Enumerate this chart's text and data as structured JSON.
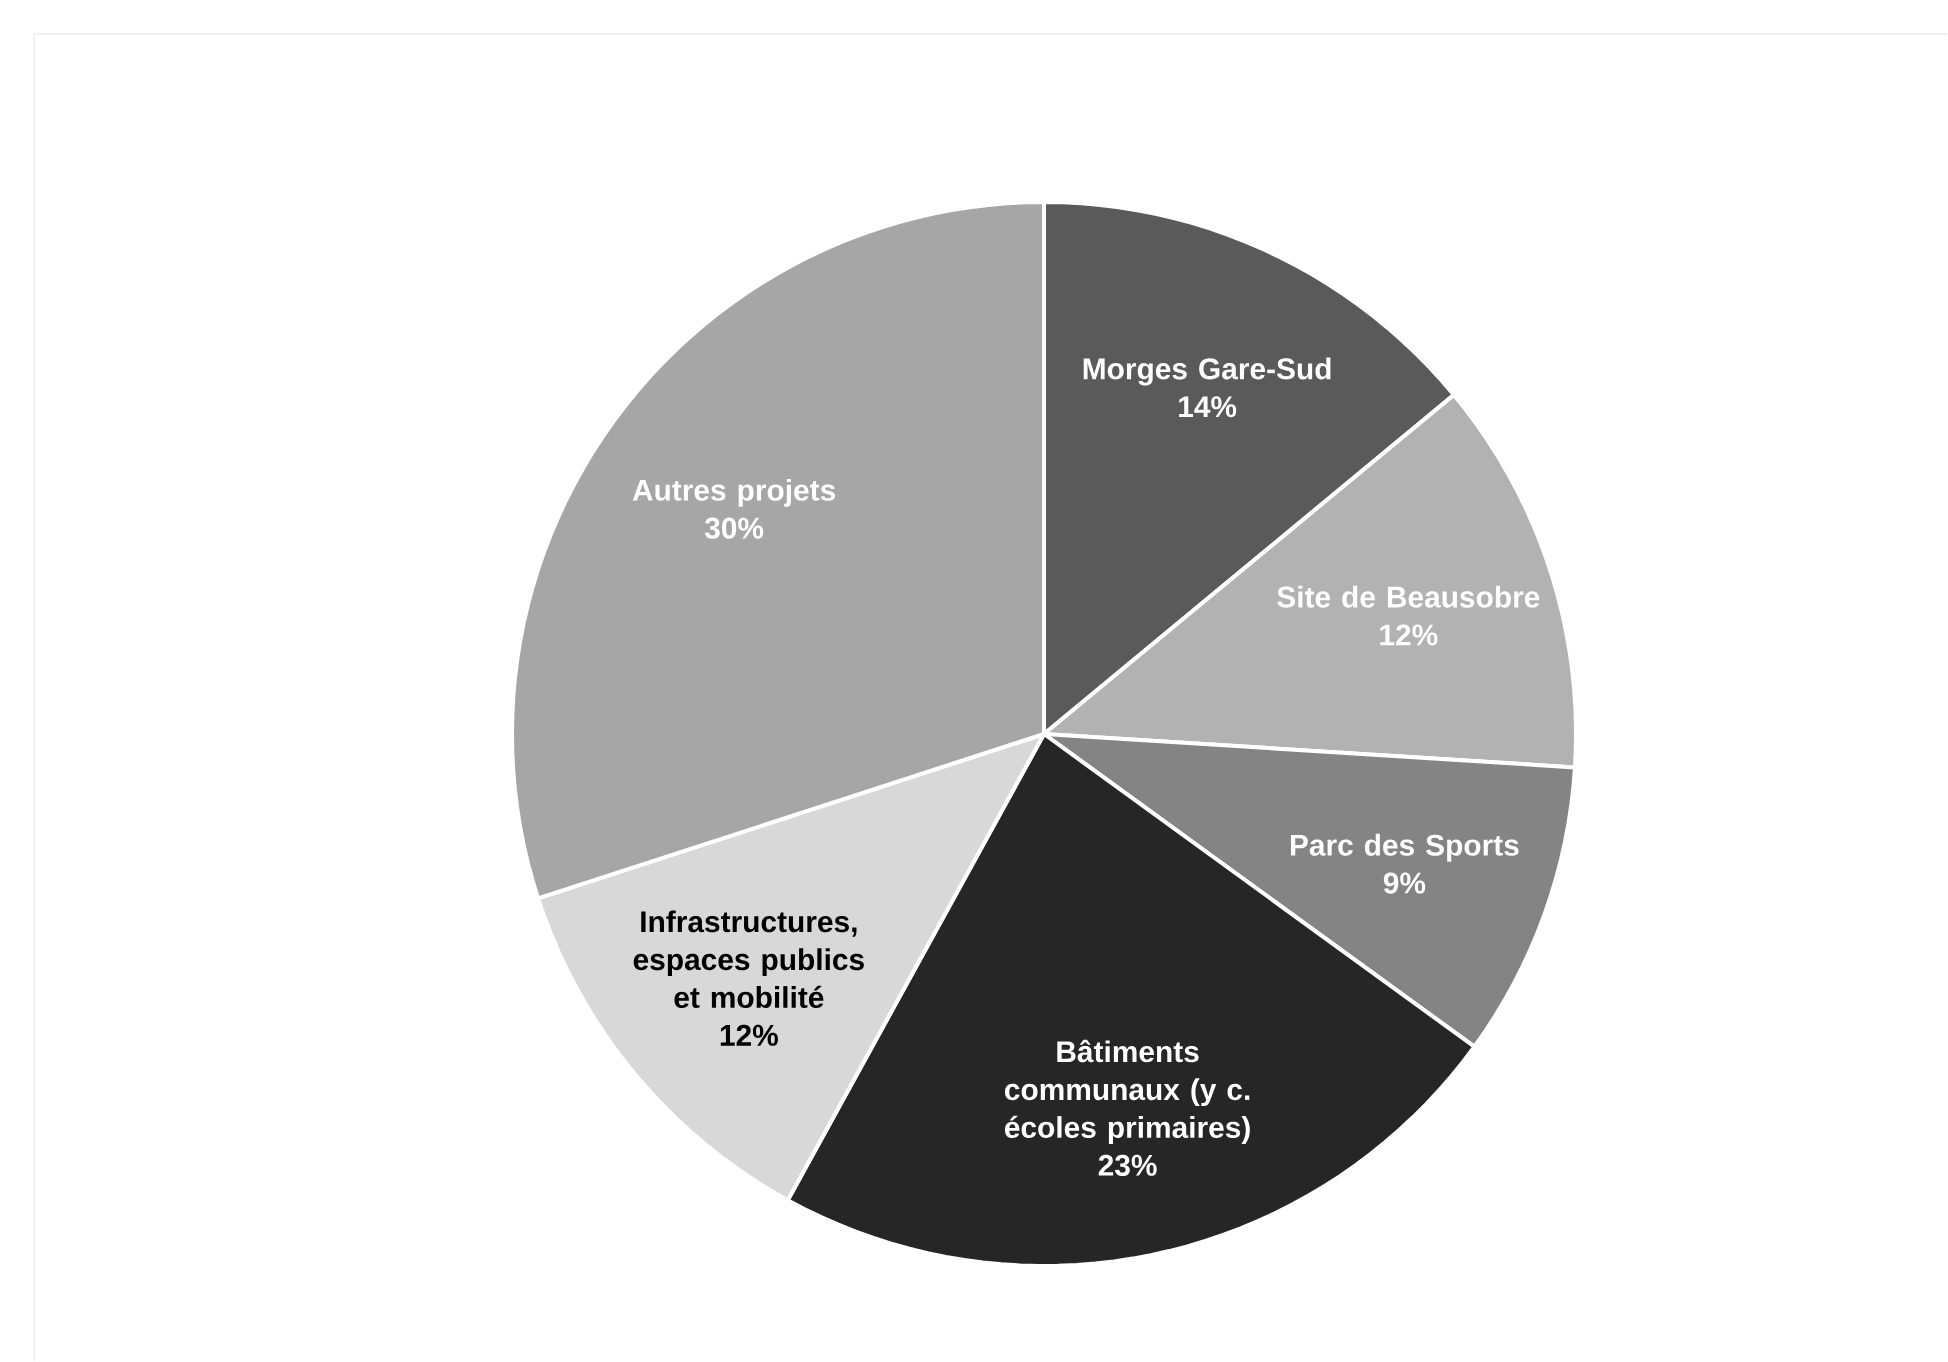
{
  "chart_data": {
    "type": "pie",
    "categories": [
      "Morges Gare-Sud",
      "Site de Beausobre",
      "Parc des Sports",
      "Bâtiments communaux (y c. écoles primaires)",
      "Infrastructures, espaces publics et mobilité",
      "Autres projets"
    ],
    "values": [
      14,
      12,
      9,
      23,
      12,
      30
    ],
    "value_labels": [
      "14%",
      "12%",
      "9%",
      "23%",
      "12%",
      "30%"
    ],
    "colors": [
      "#5a5a5a",
      "#b2b2b2",
      "#848484",
      "#262626",
      "#d8d8d8",
      "#a6a6a6"
    ]
  }
}
